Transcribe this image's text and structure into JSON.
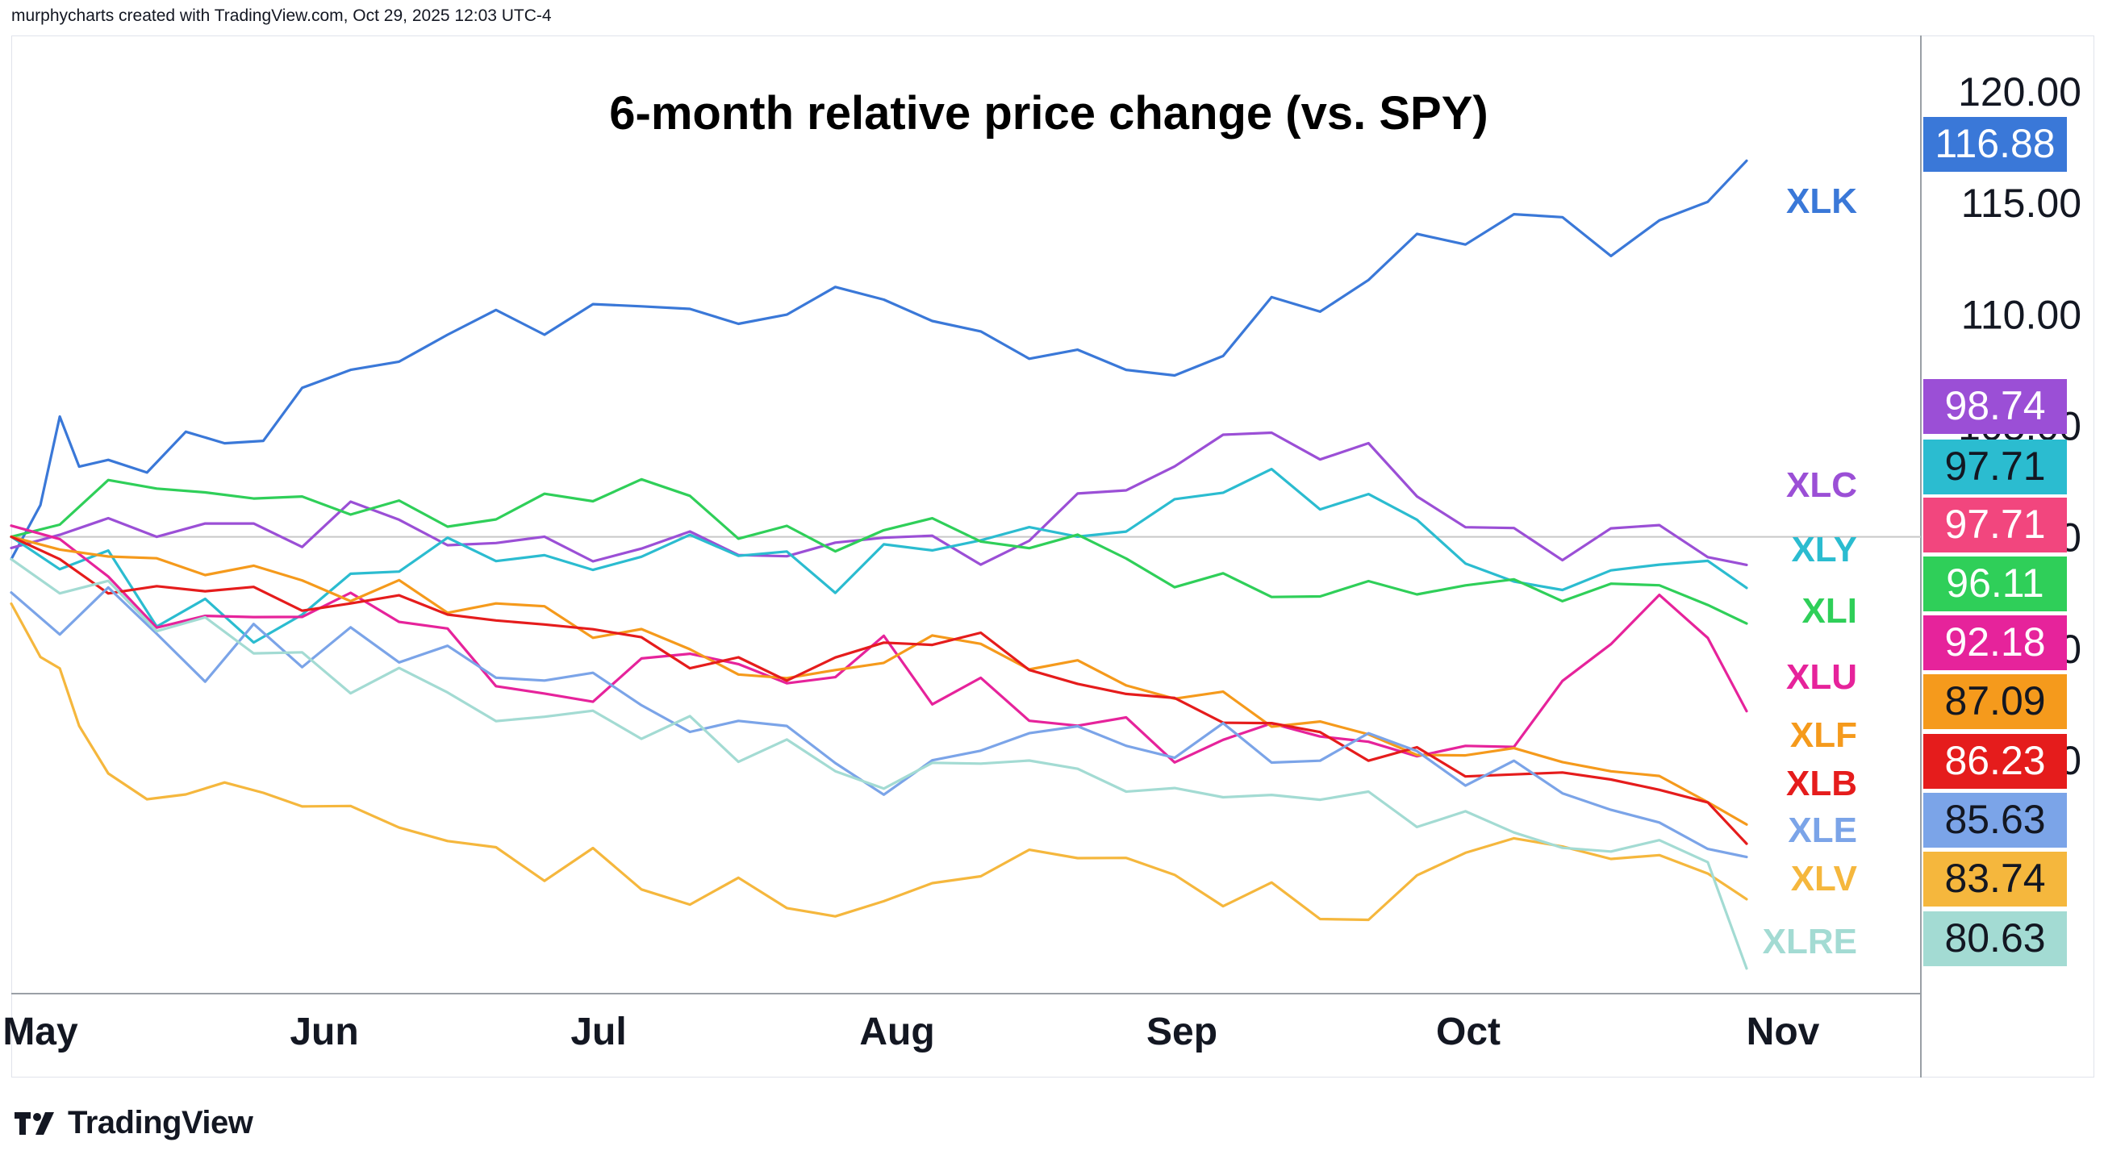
{
  "header": {
    "attribution": "murphycharts created with TradingView.com, Oct 29, 2025 12:03 UTC-4"
  },
  "footer": {
    "brand": "TradingView",
    "logo_icon": "tradingview-logo-icon"
  },
  "chart_data": {
    "type": "line",
    "title": "6-month relative price change (vs. SPY)",
    "xlabel": "",
    "ylabel": "",
    "x_ticks": [
      "May",
      "Jun",
      "Jul",
      "Aug",
      "Sep",
      "Oct",
      "Nov"
    ],
    "y_ticks": [
      90,
      95,
      100,
      105,
      110,
      115,
      120
    ],
    "ylim": [
      79.5,
      122.5
    ],
    "baseline": 100,
    "baseline_color": "#c8c8c8",
    "series": [
      {
        "name": "XLK",
        "color": "#3a78d8",
        "last_value": "116.88",
        "x": [
          0,
          3,
          5,
          7,
          10,
          14,
          18,
          22,
          26,
          30,
          35,
          40,
          45,
          50,
          55,
          60,
          65,
          70,
          75,
          80,
          85,
          90,
          95,
          100,
          105,
          110,
          115,
          120,
          125,
          130,
          135,
          140,
          145,
          150,
          155,
          160,
          165,
          170,
          175,
          179
        ],
        "y": [
          99,
          101.5,
          105,
          103.5,
          104,
          103,
          105,
          104.5,
          104,
          106.5,
          107.5,
          108,
          109,
          110,
          109.5,
          110,
          110.5,
          110.5,
          109,
          110.5,
          111,
          110.5,
          110,
          109,
          108,
          108.5,
          107.5,
          107,
          108.5,
          110.5,
          110,
          112,
          113,
          113.5,
          114.5,
          114,
          113,
          114,
          115,
          116.88
        ]
      },
      {
        "name": "XLC",
        "color": "#9b4fd6",
        "last_value": "98.74",
        "x": [
          0,
          5,
          10,
          15,
          20,
          25,
          30,
          35,
          40,
          45,
          50,
          55,
          60,
          65,
          70,
          75,
          80,
          85,
          90,
          95,
          100,
          105,
          110,
          115,
          120,
          125,
          130,
          135,
          140,
          145,
          150,
          155,
          160,
          165,
          170,
          175,
          179
        ],
        "y": [
          99.5,
          100.5,
          100.5,
          100,
          101,
          100,
          100,
          101.5,
          100.5,
          100,
          99.5,
          100,
          99,
          99.5,
          100,
          99.5,
          99,
          99.5,
          100.5,
          99.5,
          99,
          100,
          101.5,
          102.5,
          103,
          104.5,
          104.8,
          103.5,
          104,
          102,
          100.5,
          100,
          99.5,
          100,
          100.5,
          99.5,
          98.74
        ]
      },
      {
        "name": "XLY",
        "color": "#2bbcd0",
        "last_value": "97.71",
        "x": [
          0,
          5,
          10,
          15,
          20,
          25,
          30,
          35,
          40,
          45,
          50,
          55,
          60,
          65,
          70,
          75,
          80,
          85,
          90,
          95,
          100,
          105,
          110,
          115,
          120,
          125,
          130,
          135,
          140,
          145,
          150,
          155,
          160,
          165,
          170,
          175,
          179
        ],
        "y": [
          100,
          98.5,
          99.5,
          96,
          97,
          95.5,
          96.5,
          98,
          99,
          99.5,
          99,
          99.5,
          98,
          99.5,
          100,
          99,
          99.5,
          97.5,
          99.5,
          99.5,
          100,
          100,
          100.5,
          100,
          101.5,
          102.5,
          102.5,
          101.5,
          102,
          100.5,
          99,
          98,
          97.5,
          98.5,
          99,
          98.5,
          97.71
        ]
      },
      {
        "name": "XLI",
        "color": "#2fcf59",
        "last_value": "96.11",
        "x": [
          0,
          5,
          10,
          15,
          20,
          25,
          30,
          35,
          40,
          45,
          50,
          55,
          60,
          65,
          70,
          75,
          80,
          85,
          90,
          95,
          100,
          105,
          110,
          115,
          120,
          125,
          130,
          135,
          140,
          145,
          150,
          155,
          160,
          165,
          170,
          175,
          179
        ],
        "y": [
          100,
          101,
          102,
          102.5,
          102,
          101.5,
          102,
          101,
          101.5,
          100.5,
          101,
          101.5,
          102,
          102.5,
          101.5,
          100.5,
          100,
          99.5,
          100.5,
          100.5,
          100,
          99.5,
          100,
          99,
          98,
          98,
          97.5,
          97.5,
          97.5,
          98,
          97.5,
          98,
          97.5,
          97.5,
          98,
          97,
          96.11
        ]
      },
      {
        "name": "XLU",
        "color": "#e6239b",
        "last_value": "92.18",
        "x": [
          0,
          5,
          10,
          15,
          20,
          25,
          30,
          35,
          40,
          45,
          50,
          55,
          60,
          65,
          70,
          75,
          80,
          85,
          90,
          95,
          100,
          105,
          110,
          115,
          120,
          125,
          130,
          135,
          140,
          145,
          150,
          155,
          160,
          165,
          170,
          175,
          179
        ],
        "y": [
          100.5,
          99.5,
          98.5,
          96,
          96,
          97,
          96,
          97.5,
          96.5,
          95.5,
          93.5,
          93,
          92.5,
          94.5,
          95,
          94,
          93.5,
          94,
          95,
          93,
          93.5,
          91.5,
          92,
          91.5,
          90,
          91,
          91.5,
          91,
          91,
          90,
          90.5,
          91,
          93,
          95.5,
          97.5,
          95,
          92.18
        ]
      },
      {
        "name": "XLF",
        "color": "#f59a1c",
        "last_value": "87.09",
        "x": [
          0,
          5,
          10,
          15,
          20,
          25,
          30,
          35,
          40,
          45,
          50,
          55,
          60,
          65,
          70,
          75,
          80,
          85,
          90,
          95,
          100,
          105,
          110,
          115,
          120,
          125,
          130,
          135,
          140,
          145,
          150,
          155,
          160,
          165,
          170,
          175,
          179
        ],
        "y": [
          100,
          99.5,
          99,
          99,
          98.5,
          98.5,
          98,
          97.5,
          97.5,
          97,
          97,
          96.5,
          96,
          95.5,
          95,
          94,
          93.5,
          94,
          94.5,
          95.5,
          95,
          94.5,
          94,
          93.5,
          93,
          92.5,
          92,
          91.5,
          91,
          90.5,
          90,
          90.5,
          90,
          89.5,
          89,
          88.5,
          87.09
        ]
      },
      {
        "name": "XLB",
        "color": "#e51c1c",
        "last_value": "86.23",
        "x": [
          0,
          5,
          10,
          15,
          20,
          25,
          30,
          35,
          40,
          45,
          50,
          55,
          60,
          65,
          70,
          75,
          80,
          85,
          90,
          95,
          100,
          105,
          110,
          115,
          120,
          125,
          130,
          135,
          140,
          145,
          150,
          155,
          160,
          165,
          170,
          175,
          179
        ],
        "y": [
          100,
          98.5,
          98,
          97.5,
          97.5,
          98,
          96.5,
          97,
          97.5,
          96.5,
          96,
          96.5,
          95.5,
          95.5,
          94.5,
          94,
          94,
          94.5,
          95,
          95.5,
          95.5,
          94,
          93.5,
          93,
          92.5,
          92,
          91.5,
          91,
          90.5,
          90,
          89.5,
          89.5,
          89,
          89.5,
          88.5,
          88,
          86.23
        ]
      },
      {
        "name": "XLE",
        "color": "#7ba4e8",
        "last_value": "85.63",
        "x": [
          0,
          5,
          10,
          15,
          20,
          25,
          30,
          35,
          40,
          45,
          50,
          55,
          60,
          65,
          70,
          75,
          80,
          85,
          90,
          95,
          100,
          105,
          110,
          115,
          120,
          125,
          130,
          135,
          140,
          145,
          150,
          155,
          160,
          165,
          170,
          175,
          179
        ],
        "y": [
          97.5,
          96,
          97.5,
          95.5,
          94,
          95.5,
          94.5,
          96,
          94,
          95.5,
          93.5,
          93.5,
          94,
          92.5,
          91,
          92,
          91.5,
          89.5,
          89,
          89.5,
          90.5,
          91.5,
          91,
          91,
          90,
          91.5,
          90,
          90,
          91,
          90.5,
          89,
          89.5,
          89,
          87.5,
          87,
          86.5,
          85.63
        ]
      },
      {
        "name": "XLV",
        "color": "#f5b73d",
        "last_value": "83.74",
        "x": [
          0,
          3,
          5,
          7,
          10,
          14,
          18,
          22,
          26,
          30,
          35,
          40,
          45,
          50,
          55,
          60,
          65,
          70,
          75,
          80,
          85,
          90,
          95,
          100,
          105,
          110,
          115,
          120,
          125,
          130,
          135,
          140,
          145,
          150,
          155,
          160,
          165,
          170,
          175,
          179
        ],
        "y": [
          97,
          95,
          94,
          92,
          89.5,
          88.5,
          89,
          89,
          88.5,
          88,
          87.5,
          87.5,
          86,
          86,
          85,
          85.5,
          84.5,
          83.5,
          84.5,
          83.5,
          83,
          83.5,
          84.5,
          85,
          85.5,
          86,
          85.5,
          84.5,
          84,
          84,
          83,
          83,
          84.5,
          86,
          86.5,
          86,
          85.5,
          86,
          84.5,
          83.74
        ]
      },
      {
        "name": "XLRE",
        "color": "#a3dbd3",
        "last_value": "80.63",
        "x": [
          0,
          5,
          10,
          15,
          20,
          25,
          30,
          35,
          40,
          45,
          50,
          55,
          60,
          65,
          70,
          75,
          80,
          85,
          90,
          95,
          100,
          105,
          110,
          115,
          120,
          125,
          130,
          135,
          140,
          145,
          150,
          155,
          160,
          165,
          170,
          175,
          179
        ],
        "y": [
          99,
          98,
          97.5,
          96,
          96.5,
          94.5,
          95,
          93,
          94,
          93,
          92,
          91.5,
          92.5,
          91,
          91.5,
          90.5,
          90.5,
          89.5,
          89,
          89.5,
          90,
          90,
          89.5,
          88.5,
          89,
          88,
          88.5,
          88.5,
          88,
          87.5,
          87.5,
          86.5,
          86.5,
          85.5,
          86.5,
          85.5,
          80.63
        ]
      }
    ]
  }
}
